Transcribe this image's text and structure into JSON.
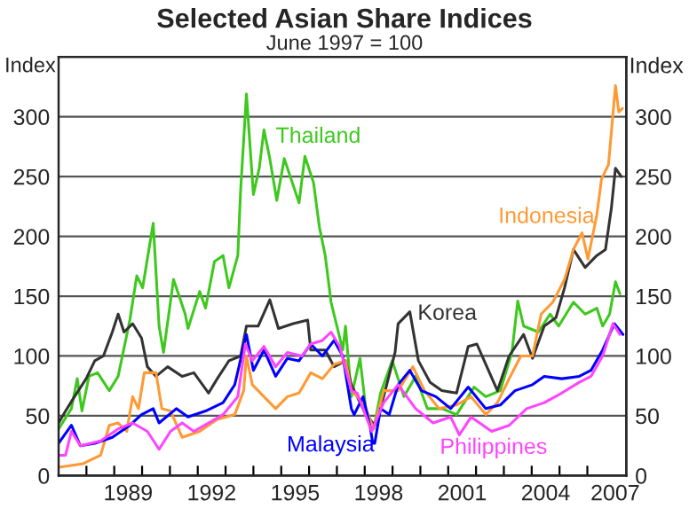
{
  "chart_data": {
    "type": "line",
    "title": "Selected Asian Share Indices",
    "subtitle": "June 1997 = 100",
    "ylabel": "Index",
    "y2label": "Index",
    "xlim": [
      1987.0,
      2007.4
    ],
    "ylim": [
      0,
      350
    ],
    "y2lim": [
      0,
      350
    ],
    "xticks": [
      {
        "value": 1988,
        "label": null
      },
      {
        "value": 1989,
        "label": null
      },
      {
        "value": 1989.5,
        "label": "1989"
      },
      {
        "value": 1990,
        "label": null
      },
      {
        "value": 1991,
        "label": null
      },
      {
        "value": 1992,
        "label": null
      },
      {
        "value": 1992.5,
        "label": "1992"
      },
      {
        "value": 1993,
        "label": null
      },
      {
        "value": 1994,
        "label": null
      },
      {
        "value": 1995,
        "label": null
      },
      {
        "value": 1995.5,
        "label": "1995"
      },
      {
        "value": 1996,
        "label": null
      },
      {
        "value": 1997,
        "label": null
      },
      {
        "value": 1998,
        "label": null
      },
      {
        "value": 1998.5,
        "label": "1998"
      },
      {
        "value": 1999,
        "label": null
      },
      {
        "value": 2000,
        "label": null
      },
      {
        "value": 2001,
        "label": null
      },
      {
        "value": 2001.5,
        "label": "2001"
      },
      {
        "value": 2002,
        "label": null
      },
      {
        "value": 2003,
        "label": null
      },
      {
        "value": 2004,
        "label": null
      },
      {
        "value": 2004.5,
        "label": "2004"
      },
      {
        "value": 2005,
        "label": null
      },
      {
        "value": 2006,
        "label": null
      },
      {
        "value": 2007,
        "label": "2007"
      }
    ],
    "yticks": [
      0,
      50,
      100,
      150,
      200,
      250,
      300
    ],
    "y2ticks": [
      0,
      50,
      100,
      150,
      200,
      250,
      300
    ],
    "grid": "y",
    "legend": false,
    "series": [
      {
        "name": "Thailand",
        "color": "#3ec81e",
        "x": [
          1987.0,
          1987.46,
          1987.67,
          1987.84,
          1988.09,
          1988.4,
          1988.82,
          1989.14,
          1989.56,
          1989.81,
          1990.02,
          1990.4,
          1990.61,
          1990.77,
          1991.13,
          1991.55,
          1991.65,
          1992.07,
          1992.28,
          1992.6,
          1992.91,
          1993.12,
          1993.44,
          1993.54,
          1993.75,
          1994.0,
          1994.21,
          1994.38,
          1994.59,
          1994.84,
          1995.11,
          1995.64,
          1995.85,
          1996.16,
          1996.37,
          1996.58,
          1996.79,
          1997.0,
          1997.21,
          1997.31,
          1997.52,
          1997.83,
          1998.04,
          1998.32,
          1998.57,
          1998.99,
          1999.41,
          1999.83,
          2000.25,
          2000.78,
          2001.3,
          2001.93,
          2002.35,
          2002.87,
          2003.29,
          2003.5,
          2003.71,
          2004.24,
          2004.66,
          2004.97,
          2005.5,
          2005.92,
          2006.34,
          2006.55,
          2006.8,
          2007.01,
          2007.17
        ],
        "values": [
          39,
          56,
          81,
          54,
          83,
          86,
          71,
          83,
          130,
          167,
          157,
          211,
          125,
          103,
          164,
          135,
          123,
          154,
          140,
          179,
          184,
          157,
          184,
          238,
          319,
          235,
          257,
          289,
          265,
          230,
          265,
          228,
          267,
          245,
          208,
          184,
          145,
          125,
          105,
          125,
          66,
          98,
          56,
          39,
          69,
          96,
          66,
          83,
          56,
          56,
          51,
          74,
          66,
          71,
          103,
          146,
          125,
          120,
          135,
          125,
          145,
          135,
          140,
          125,
          135,
          162,
          152
        ]
      },
      {
        "name": "Korea",
        "color": "#333333",
        "x": [
          1987.0,
          1987.25,
          1987.57,
          1987.99,
          1988.3,
          1988.61,
          1988.93,
          1989.14,
          1989.35,
          1989.66,
          1989.98,
          1990.19,
          1990.5,
          1990.92,
          1991.44,
          1991.86,
          1992.39,
          1992.7,
          1993.12,
          1993.54,
          1993.75,
          1994.17,
          1994.59,
          1994.9,
          1995.43,
          1995.95,
          1996.06,
          1996.58,
          1996.9,
          1997.31,
          1997.52,
          1998.04,
          1998.36,
          1998.68,
          1999.09,
          1999.2,
          1999.62,
          1999.93,
          2000.35,
          2000.77,
          2001.3,
          2001.72,
          2002.03,
          2002.35,
          2002.77,
          2003.19,
          2003.71,
          2004.03,
          2004.45,
          2004.87,
          2005.18,
          2005.5,
          2005.92,
          2006.34,
          2006.65,
          2006.86,
          2007.01,
          2007.22
        ],
        "values": [
          44,
          54,
          66,
          81,
          96,
          100,
          120,
          135,
          120,
          127,
          115,
          91,
          83,
          91,
          83,
          86,
          69,
          81,
          96,
          100,
          125,
          125,
          147,
          123,
          127,
          130,
          105,
          105,
          91,
          96,
          76,
          51,
          42,
          66,
          103,
          127,
          137,
          96,
          78,
          71,
          69,
          108,
          110,
          93,
          71,
          100,
          118,
          98,
          125,
          132,
          157,
          189,
          174,
          184,
          189,
          223,
          257,
          250
        ]
      },
      {
        "name": "Indonesia",
        "color": "#ff9933",
        "x": [
          1987.0,
          1987.88,
          1988.51,
          1988.82,
          1989.14,
          1989.45,
          1989.66,
          1989.87,
          1990.08,
          1990.5,
          1990.71,
          1991.02,
          1991.44,
          1992.07,
          1992.7,
          1993.33,
          1993.65,
          1993.75,
          1993.96,
          1994.38,
          1994.8,
          1995.22,
          1995.64,
          1996.06,
          1996.48,
          1996.9,
          1997.31,
          1997.52,
          1997.94,
          1998.32,
          1998.68,
          1999.2,
          1999.73,
          2000.15,
          2000.67,
          2001.3,
          2001.82,
          2002.35,
          2002.77,
          2003.19,
          2003.61,
          2004.03,
          2004.34,
          2004.76,
          2005.18,
          2005.5,
          2005.81,
          2006.02,
          2006.34,
          2006.51,
          2006.76,
          2007.01,
          2007.13,
          2007.26
        ],
        "values": [
          7,
          10,
          17,
          42,
          44,
          37,
          66,
          56,
          86,
          86,
          56,
          54,
          32,
          37,
          47,
          51,
          71,
          100,
          76,
          66,
          56,
          66,
          69,
          86,
          81,
          93,
          96,
          71,
          61,
          39,
          71,
          71,
          91,
          71,
          56,
          59,
          66,
          51,
          61,
          81,
          100,
          100,
          135,
          145,
          164,
          189,
          203,
          181,
          218,
          248,
          260,
          326,
          304,
          307
        ]
      },
      {
        "name": "Malaysia",
        "color": "#0000ff",
        "x": [
          1987.0,
          1987.46,
          1987.78,
          1988.3,
          1988.93,
          1989.56,
          1989.98,
          1990.4,
          1990.61,
          1991.23,
          1991.65,
          1992.28,
          1992.91,
          1993.33,
          1993.75,
          1994.0,
          1994.38,
          1994.8,
          1995.22,
          1995.64,
          1996.06,
          1996.48,
          1996.9,
          1997.21,
          1997.52,
          1997.62,
          1997.94,
          1998.2,
          1998.29,
          1998.36,
          1998.57,
          1998.88,
          1999.2,
          1999.62,
          2000.04,
          2000.56,
          2001.09,
          2001.72,
          2002.35,
          2002.87,
          2003.4,
          2004.03,
          2004.45,
          2005.08,
          2005.71,
          2006.13,
          2006.55,
          2006.97,
          2007.28
        ],
        "values": [
          27,
          42,
          25,
          27,
          32,
          42,
          51,
          56,
          44,
          56,
          49,
          54,
          61,
          76,
          118,
          88,
          105,
          83,
          98,
          96,
          110,
          100,
          113,
          100,
          56,
          51,
          66,
          40,
          27,
          27,
          56,
          51,
          76,
          88,
          71,
          66,
          56,
          74,
          56,
          59,
          71,
          76,
          83,
          81,
          83,
          88,
          105,
          127,
          118
        ]
      },
      {
        "name": "Philippines",
        "color": "#ff44ff",
        "x": [
          1987.0,
          1987.25,
          1987.46,
          1987.78,
          1988.51,
          1989.14,
          1989.66,
          1990.19,
          1990.61,
          1991.02,
          1991.44,
          1991.86,
          1992.39,
          1992.91,
          1993.44,
          1993.71,
          1993.96,
          1994.38,
          1994.8,
          1995.22,
          1995.74,
          1996.06,
          1996.48,
          1996.79,
          1997.1,
          1997.52,
          1997.73,
          1998.25,
          1998.68,
          1999.2,
          1999.83,
          2000.46,
          2001.09,
          2001.4,
          2001.82,
          2002.56,
          2003.19,
          2003.82,
          2004.45,
          2005.08,
          2005.71,
          2006.13,
          2006.55,
          2006.92,
          2007.17
        ],
        "values": [
          17,
          17,
          37,
          25,
          29,
          39,
          44,
          37,
          22,
          37,
          44,
          37,
          44,
          51,
          66,
          110,
          96,
          108,
          91,
          103,
          100,
          110,
          113,
          120,
          108,
          71,
          69,
          37,
          61,
          76,
          56,
          44,
          49,
          34,
          49,
          37,
          42,
          56,
          61,
          69,
          78,
          83,
          100,
          127,
          118
        ]
      }
    ]
  }
}
